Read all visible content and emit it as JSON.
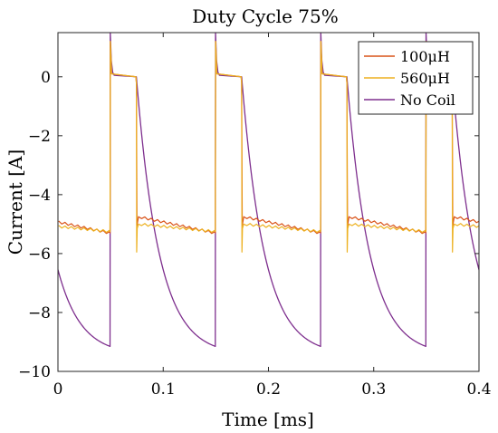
{
  "chart_data": {
    "type": "line",
    "title": "Duty Cycle 75%",
    "xlabel": "Time [ms]",
    "ylabel": "Current [A]",
    "xlim": [
      0,
      0.4
    ],
    "ylim": [
      -10,
      1.5
    ],
    "x_ticks": [
      0,
      0.1,
      0.2,
      0.3,
      0.4
    ],
    "x_tick_labels": [
      "0",
      "0.1",
      "0.2",
      "0.3",
      "0.4"
    ],
    "y_ticks": [
      0,
      -2,
      -4,
      -6,
      -8,
      -10
    ],
    "y_tick_labels": [
      "0",
      "−2",
      "−4",
      "−6",
      "−8",
      "−10"
    ],
    "grid": false,
    "legend_position": "top-right",
    "period_ms": 0.1,
    "on_time_ms": 0.075,
    "series": [
      {
        "name": "100μH",
        "color": "#d95319",
        "period_ms": 0.1,
        "high_value": 0,
        "low_start": -4.75,
        "low_end": -5.3,
        "spike_peak": 1.2
      },
      {
        "name": "560μH",
        "color": "#edb120",
        "period_ms": 0.1,
        "high_value": 0,
        "low_start": -5.0,
        "low_end": -5.25,
        "spike_peak": 1.2,
        "spike_trough": -5.95
      },
      {
        "name": "No Coil",
        "color": "#7e2f8e",
        "period_ms": 0.1,
        "high_value": 0,
        "decay_to": -9.15,
        "spike_peak": 1.5
      }
    ]
  }
}
